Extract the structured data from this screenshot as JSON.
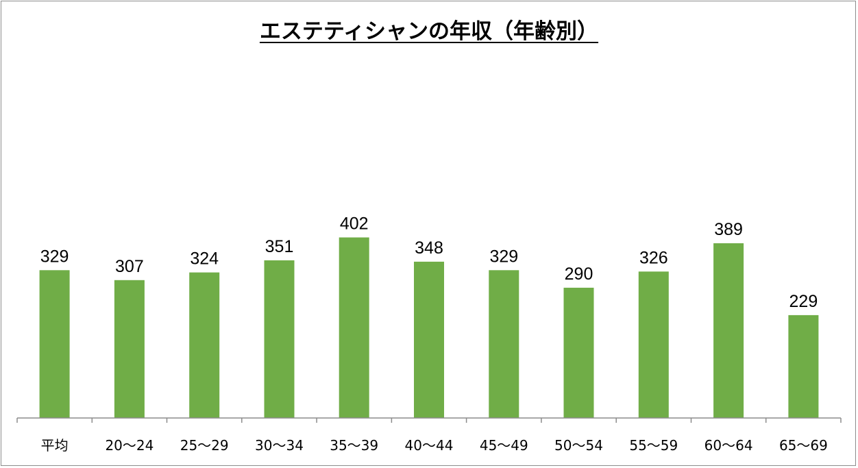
{
  "chart_data": {
    "type": "bar",
    "title": "エステティシャンの年収（年齢別）",
    "categories": [
      "平均",
      "20〜24",
      "25〜29",
      "30〜34",
      "35〜39",
      "40〜44",
      "45〜49",
      "50〜54",
      "55〜59",
      "60〜64",
      "65〜69"
    ],
    "values": [
      329,
      307,
      324,
      351,
      402,
      348,
      329,
      290,
      326,
      389,
      229
    ],
    "data_labels": [
      "329",
      "307",
      "324",
      "351",
      "402",
      "348",
      "329",
      "290",
      "326",
      "389",
      "229"
    ],
    "xlabel": "",
    "ylabel": "",
    "ylim": [
      0,
      450
    ],
    "grid": false,
    "legend": "none",
    "bar_color": "#70AD47"
  }
}
